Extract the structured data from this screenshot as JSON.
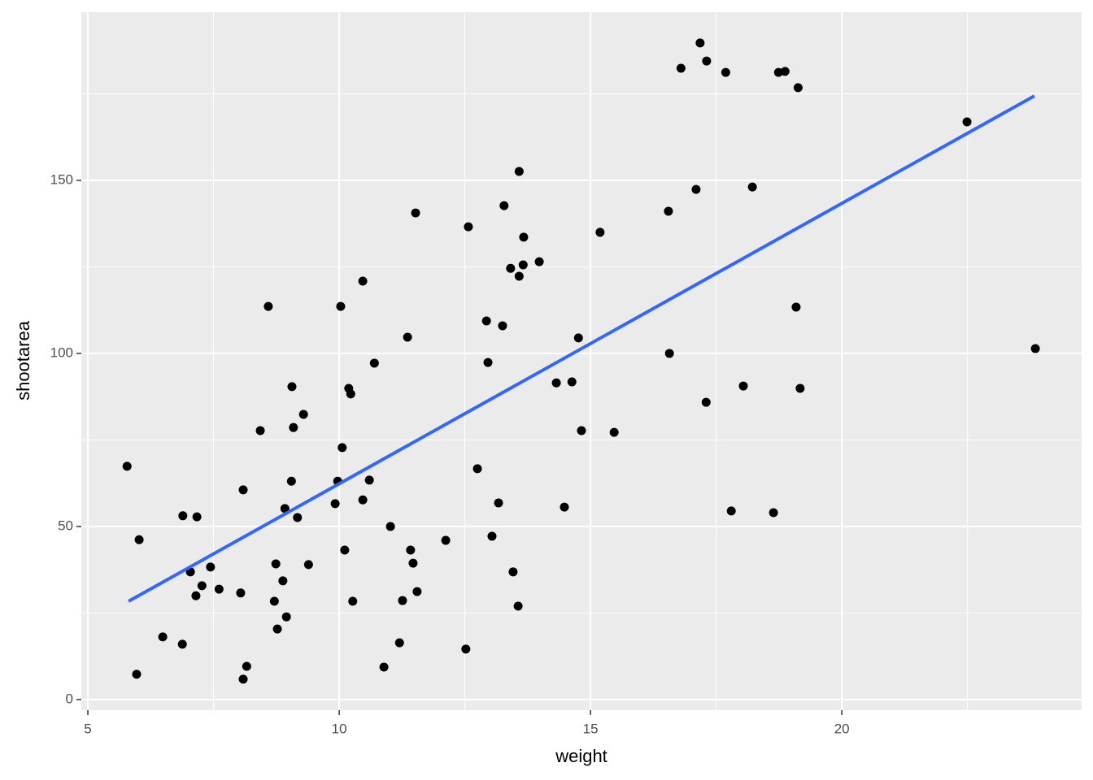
{
  "chart_data": {
    "type": "scatter",
    "x_label": "weight",
    "y_label": "shootarea",
    "xlim": [
      4.87,
      24.77
    ],
    "ylim": [
      -3.05,
      198.6
    ],
    "xticks": [
      5,
      10,
      15,
      20
    ],
    "yticks": [
      0,
      50,
      100,
      150
    ],
    "minor_xticks": [
      7.5,
      12.5,
      17.5,
      22.5
    ],
    "minor_yticks": [
      25,
      75,
      125,
      175
    ],
    "grid": true,
    "panel_color": "#ebebeb",
    "color": "#000000",
    "x": [
      5.78,
      6.02,
      5.97,
      6.49,
      6.88,
      6.89,
      7.17,
      7.04,
      7.15,
      7.27,
      7.44,
      7.61,
      8.04,
      8.09,
      8.16,
      8.09,
      8.43,
      8.59,
      8.74,
      8.71,
      8.77,
      8.88,
      8.92,
      8.95,
      9.05,
      9.06,
      9.09,
      9.17,
      9.29,
      9.39,
      9.92,
      9.97,
      10.03,
      10.06,
      10.11,
      10.19,
      10.23,
      10.27,
      10.47,
      10.47,
      10.6,
      10.7,
      10.89,
      11.02,
      11.2,
      11.26,
      11.36,
      11.42,
      11.47,
      11.52,
      11.55,
      12.12,
      12.52,
      12.57,
      12.75,
      12.93,
      12.96,
      13.04,
      13.17,
      13.25,
      13.28,
      13.41,
      13.46,
      13.58,
      13.58,
      13.56,
      13.66,
      13.67,
      13.98,
      14.32,
      14.48,
      14.63,
      14.76,
      14.82,
      15.19,
      15.47,
      16.55,
      16.57,
      16.8,
      17.1,
      17.18,
      17.3,
      17.31,
      17.69,
      17.8,
      18.04,
      18.22,
      18.64,
      18.74,
      18.87,
      19.09,
      19.13,
      19.17,
      22.49,
      23.85
    ],
    "values": [
      67.4,
      46.2,
      7.3,
      18.1,
      16.0,
      53.1,
      52.8,
      36.9,
      30.0,
      32.9,
      38.3,
      31.9,
      30.8,
      60.6,
      9.6,
      5.9,
      77.7,
      113.6,
      39.2,
      28.4,
      20.4,
      34.3,
      55.2,
      23.9,
      63.1,
      90.4,
      78.6,
      52.6,
      82.4,
      39.0,
      56.6,
      63.1,
      113.6,
      72.8,
      43.2,
      89.9,
      88.3,
      28.4,
      120.9,
      57.7,
      63.4,
      97.2,
      9.4,
      50.0,
      16.4,
      28.6,
      104.7,
      43.2,
      39.4,
      140.6,
      31.2,
      46.0,
      14.6,
      136.6,
      66.7,
      109.4,
      97.4,
      47.2,
      56.8,
      108.0,
      142.7,
      124.6,
      36.9,
      152.6,
      122.3,
      27.0,
      125.6,
      133.6,
      126.5,
      91.5,
      55.6,
      91.8,
      104.5,
      77.7,
      135.0,
      77.2,
      141.1,
      100.0,
      182.4,
      147.4,
      189.7,
      85.9,
      184.5,
      181.2,
      54.5,
      90.6,
      148.1,
      54.0,
      181.2,
      181.5,
      113.4,
      176.8,
      89.9,
      166.9,
      101.4
    ],
    "fit": {
      "color": "#3366ff",
      "x": [
        5.81,
        23.83
      ],
      "values": [
        28.4,
        174.4
      ]
    }
  }
}
